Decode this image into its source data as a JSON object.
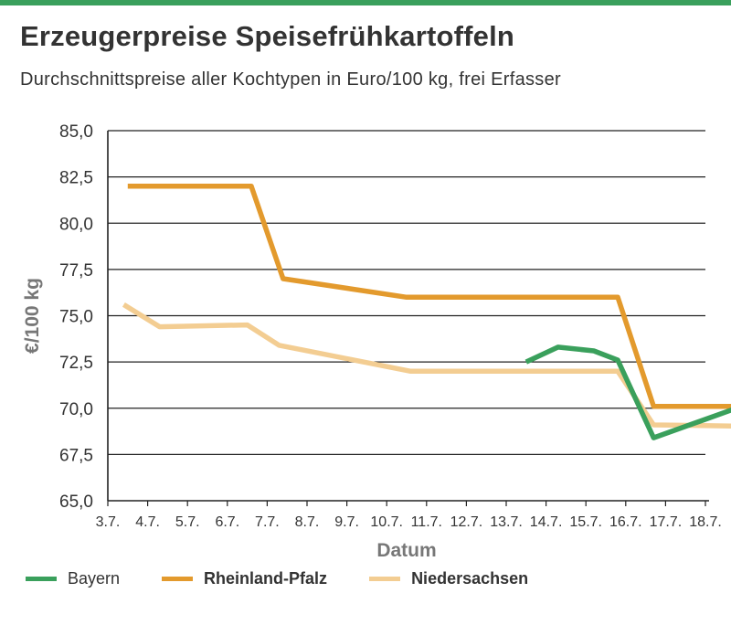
{
  "title": "Erzeugerpreise Speisefrühkartoffeln",
  "subtitle": "Durchschnittspreise aller Kochtypen in Euro/100 kg, frei Erfasser",
  "colors": {
    "accent_bar": "#3aa05c",
    "bayern": "#3aa05c",
    "rheinland_pfalz": "#e39a2d",
    "niedersachsen": "#f3cd92"
  },
  "chart_data": {
    "type": "line",
    "title": "",
    "xlabel": "Datum",
    "ylabel": "€/100 kg",
    "x": [
      "3.7.",
      "4.7.",
      "5.7.",
      "6.7.",
      "7.7.",
      "8.7.",
      "9.7.",
      "10.7.",
      "11.7.",
      "12.7.",
      "13.7.",
      "14.7.",
      "15.7.",
      "16.7.",
      "17.7.",
      "18.7."
    ],
    "ylim": [
      65.0,
      85.0
    ],
    "yticks": [
      "65,0",
      "67,5",
      "70,0",
      "72,5",
      "75,0",
      "77,5",
      "80,0",
      "82,5",
      "85,0"
    ],
    "grid": "horizontal",
    "legend_position": "bottom",
    "series": [
      {
        "name": "Bayern",
        "color": "#3aa05c",
        "bold": false,
        "points": [
          {
            "x": 10.5,
            "y": 72.5
          },
          {
            "x": 11.3,
            "y": 73.3
          },
          {
            "x": 12.2,
            "y": 73.1
          },
          {
            "x": 12.8,
            "y": 72.6
          },
          {
            "x": 13.7,
            "y": 68.4
          },
          {
            "x": 15.0,
            "y": 69.4
          },
          {
            "x": 16.3,
            "y": 70.4
          },
          {
            "x": 16.9,
            "y": 70.1
          }
        ]
      },
      {
        "name": "Rheinland-Pfalz",
        "color": "#e39a2d",
        "bold": true,
        "points": [
          {
            "x": 0.5,
            "y": 82.0
          },
          {
            "x": 3.6,
            "y": 82.0
          },
          {
            "x": 4.4,
            "y": 77.0
          },
          {
            "x": 7.5,
            "y": 76.0
          },
          {
            "x": 10.8,
            "y": 76.0
          },
          {
            "x": 12.8,
            "y": 76.0
          },
          {
            "x": 13.7,
            "y": 70.1
          },
          {
            "x": 16.9,
            "y": 70.1
          }
        ]
      },
      {
        "name": "Niedersachsen",
        "color": "#f3cd92",
        "bold": true,
        "points": [
          {
            "x": 0.4,
            "y": 75.6
          },
          {
            "x": 1.3,
            "y": 74.4
          },
          {
            "x": 3.5,
            "y": 74.5
          },
          {
            "x": 4.3,
            "y": 73.4
          },
          {
            "x": 7.6,
            "y": 72.0
          },
          {
            "x": 10.5,
            "y": 72.0
          },
          {
            "x": 12.8,
            "y": 72.0
          },
          {
            "x": 13.7,
            "y": 69.1
          },
          {
            "x": 16.9,
            "y": 69.0
          }
        ]
      }
    ]
  }
}
